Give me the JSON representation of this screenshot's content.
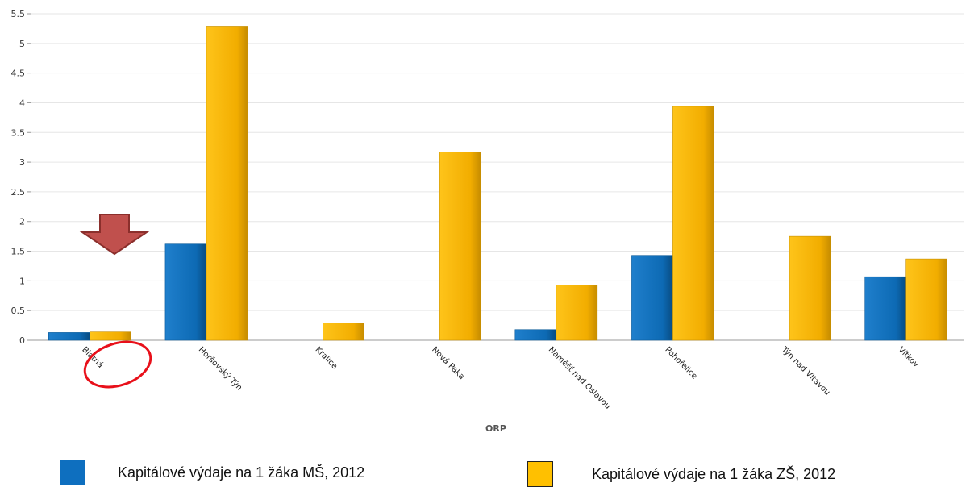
{
  "chart_data": {
    "type": "bar",
    "categories": [
      "Blatná",
      "Horšovský Týn",
      "Kralice",
      "Nová Paka",
      "Náměšť nad Oslavou",
      "Pohořelice",
      "Týn nad Vltavou",
      "Vítkov"
    ],
    "series": [
      {
        "name": "Kapitálové výdaje na 1 žáka MŠ, 2012",
        "color": "#1f77c0",
        "values": [
          0.13,
          1.62,
          0,
          0,
          0.18,
          1.43,
          0,
          1.07
        ]
      },
      {
        "name": "Kapitálové výdaje na 1 žáka ZŠ, 2012",
        "color": "#f5b400",
        "values": [
          0.14,
          5.29,
          0.29,
          3.17,
          0.93,
          3.94,
          1.75,
          1.37
        ]
      }
    ],
    "title": "",
    "xlabel": "ORP",
    "ylabel": "",
    "ylim": [
      0,
      5.5
    ],
    "yticks": [
      "0",
      "0.5",
      "1",
      "1.5",
      "2",
      "2.5",
      "3",
      "3.5",
      "4",
      "4.5",
      "5",
      "5.5"
    ],
    "grid": true,
    "legend_position": "bottom",
    "annotations": {
      "arrow_color": "#c0504d",
      "circle_color": "#e8101a",
      "highlight_category": "Blatná"
    }
  }
}
